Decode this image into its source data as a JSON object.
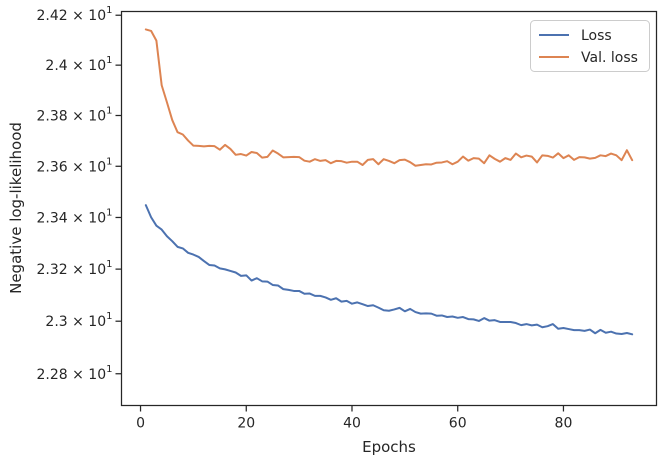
{
  "chart_data": {
    "type": "line",
    "title": "",
    "xlabel": "Epochs",
    "ylabel": "Negative log-likelihood",
    "xlim": [
      -3.6,
      97.6
    ],
    "ylim": [
      22.68,
      24.215
    ],
    "yscale": "log",
    "grid": false,
    "legend_position": "top-right",
    "x_ticks": [
      {
        "value": 0,
        "label": "0"
      },
      {
        "value": 20,
        "label": "20"
      },
      {
        "value": 40,
        "label": "40"
      },
      {
        "value": 60,
        "label": "60"
      },
      {
        "value": 80,
        "label": "80"
      }
    ],
    "y_ticks": [
      {
        "value": 22.8,
        "base": "2.28",
        "exp": "1"
      },
      {
        "value": 23.0,
        "base": "2.3",
        "exp": "1"
      },
      {
        "value": 23.2,
        "base": "2.32",
        "exp": "1"
      },
      {
        "value": 23.4,
        "base": "2.34",
        "exp": "1"
      },
      {
        "value": 23.6,
        "base": "2.36",
        "exp": "1"
      },
      {
        "value": 23.8,
        "base": "2.38",
        "exp": "1"
      },
      {
        "value": 24.0,
        "base": "2.4",
        "exp": "1"
      },
      {
        "value": 24.2,
        "base": "2.42",
        "exp": "1"
      }
    ],
    "tick_times": "×",
    "tick_base_ten": "10",
    "series": [
      {
        "name": "Loss",
        "color": "#4c72b0",
        "x": [
          1,
          2,
          3,
          4,
          5,
          6,
          7,
          8,
          9,
          10,
          11,
          12,
          13,
          14,
          15,
          16,
          17,
          18,
          19,
          20,
          21,
          22,
          23,
          24,
          25,
          26,
          27,
          28,
          29,
          30,
          31,
          32,
          33,
          34,
          35,
          36,
          37,
          38,
          39,
          40,
          41,
          42,
          43,
          44,
          45,
          46,
          47,
          48,
          49,
          50,
          51,
          52,
          53,
          54,
          55,
          56,
          57,
          58,
          59,
          60,
          61,
          62,
          63,
          64,
          65,
          66,
          67,
          68,
          69,
          70,
          71,
          72,
          73,
          74,
          75,
          76,
          77,
          78,
          79,
          80,
          81,
          82,
          83,
          84,
          85,
          86,
          87,
          88,
          89,
          90,
          91,
          92,
          93
        ],
        "values": [
          23.448,
          23.401,
          23.368,
          23.353,
          23.327,
          23.308,
          23.286,
          23.28,
          23.263,
          23.256,
          23.247,
          23.231,
          23.216,
          23.214,
          23.203,
          23.199,
          23.193,
          23.187,
          23.174,
          23.176,
          23.156,
          23.165,
          23.153,
          23.152,
          23.139,
          23.137,
          23.123,
          23.12,
          23.116,
          23.116,
          23.105,
          23.106,
          23.097,
          23.097,
          23.091,
          23.082,
          23.088,
          23.075,
          23.078,
          23.067,
          23.072,
          23.065,
          23.058,
          23.061,
          23.052,
          23.042,
          23.04,
          23.045,
          23.051,
          23.038,
          23.047,
          23.035,
          23.029,
          23.03,
          23.029,
          23.021,
          23.022,
          23.016,
          23.018,
          23.013,
          23.016,
          23.008,
          23.007,
          23.001,
          23.012,
          23.002,
          23.004,
          22.997,
          22.997,
          22.997,
          22.993,
          22.985,
          22.989,
          22.984,
          22.987,
          22.977,
          22.981,
          22.989,
          22.971,
          22.974,
          22.97,
          22.966,
          22.966,
          22.963,
          22.968,
          22.954,
          22.967,
          22.956,
          22.96,
          22.953,
          22.951,
          22.955,
          22.95
        ]
      },
      {
        "name": "Val. loss",
        "color": "#dd8452",
        "x": [
          1,
          2,
          3,
          4,
          5,
          6,
          7,
          8,
          9,
          10,
          11,
          12,
          13,
          14,
          15,
          16,
          17,
          18,
          19,
          20,
          21,
          22,
          23,
          24,
          25,
          26,
          27,
          28,
          29,
          30,
          31,
          32,
          33,
          34,
          35,
          36,
          37,
          38,
          39,
          40,
          41,
          42,
          43,
          44,
          45,
          46,
          47,
          48,
          49,
          50,
          51,
          52,
          53,
          54,
          55,
          56,
          57,
          58,
          59,
          60,
          61,
          62,
          63,
          64,
          65,
          66,
          67,
          68,
          69,
          70,
          71,
          72,
          73,
          74,
          75,
          76,
          77,
          78,
          79,
          80,
          81,
          82,
          83,
          84,
          85,
          86,
          87,
          88,
          89,
          90,
          91,
          92,
          93
        ],
        "values": [
          24.143,
          24.137,
          24.098,
          23.92,
          23.852,
          23.782,
          23.734,
          23.725,
          23.701,
          23.681,
          23.68,
          23.678,
          23.68,
          23.679,
          23.665,
          23.684,
          23.668,
          23.645,
          23.648,
          23.642,
          23.656,
          23.652,
          23.634,
          23.637,
          23.662,
          23.65,
          23.635,
          23.636,
          23.637,
          23.636,
          23.622,
          23.618,
          23.628,
          23.621,
          23.624,
          23.612,
          23.621,
          23.62,
          23.614,
          23.618,
          23.618,
          23.605,
          23.625,
          23.628,
          23.608,
          23.628,
          23.621,
          23.612,
          23.624,
          23.626,
          23.616,
          23.602,
          23.605,
          23.608,
          23.607,
          23.614,
          23.615,
          23.62,
          23.608,
          23.618,
          23.638,
          23.622,
          23.632,
          23.63,
          23.612,
          23.643,
          23.629,
          23.618,
          23.632,
          23.625,
          23.65,
          23.635,
          23.642,
          23.638,
          23.615,
          23.643,
          23.641,
          23.634,
          23.651,
          23.632,
          23.643,
          23.625,
          23.636,
          23.635,
          23.63,
          23.633,
          23.643,
          23.64,
          23.65,
          23.643,
          23.624,
          23.663,
          23.624
        ]
      }
    ]
  }
}
